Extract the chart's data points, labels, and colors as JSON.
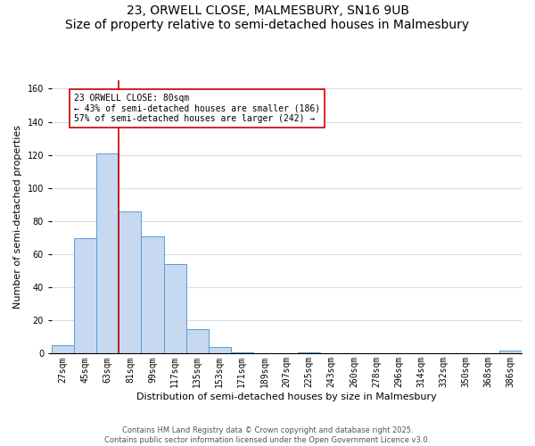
{
  "title": "23, ORWELL CLOSE, MALMESBURY, SN16 9UB",
  "subtitle": "Size of property relative to semi-detached houses in Malmesbury",
  "xlabel": "Distribution of semi-detached houses by size in Malmesbury",
  "ylabel": "Number of semi-detached properties",
  "bar_labels": [
    "27sqm",
    "45sqm",
    "63sqm",
    "81sqm",
    "99sqm",
    "117sqm",
    "135sqm",
    "153sqm",
    "171sqm",
    "189sqm",
    "207sqm",
    "225sqm",
    "243sqm",
    "260sqm",
    "278sqm",
    "296sqm",
    "314sqm",
    "332sqm",
    "350sqm",
    "368sqm",
    "386sqm"
  ],
  "bar_values": [
    5,
    70,
    121,
    86,
    71,
    54,
    15,
    4,
    1,
    0,
    0,
    1,
    0,
    0,
    0,
    0,
    0,
    0,
    0,
    0,
    2
  ],
  "bar_color": "#c6d9f0",
  "bar_edge_color": "#5b9bd5",
  "ylim": [
    0,
    165
  ],
  "yticks": [
    0,
    20,
    40,
    60,
    80,
    100,
    120,
    140,
    160
  ],
  "property_line_bar_index": 3,
  "property_line_color": "#cc0000",
  "annotation_line1": "23 ORWELL CLOSE: 80sqm",
  "annotation_line2": "← 43% of semi-detached houses are smaller (186)",
  "annotation_line3": "57% of semi-detached houses are larger (242) →",
  "footer_line1": "Contains HM Land Registry data © Crown copyright and database right 2025.",
  "footer_line2": "Contains public sector information licensed under the Open Government Licence v3.0.",
  "background_color": "#ffffff",
  "grid_color": "#c8d4e8",
  "title_fontsize": 10,
  "subtitle_fontsize": 8.5,
  "axis_label_fontsize": 8,
  "tick_fontsize": 7,
  "annotation_fontsize": 7,
  "footer_fontsize": 6
}
